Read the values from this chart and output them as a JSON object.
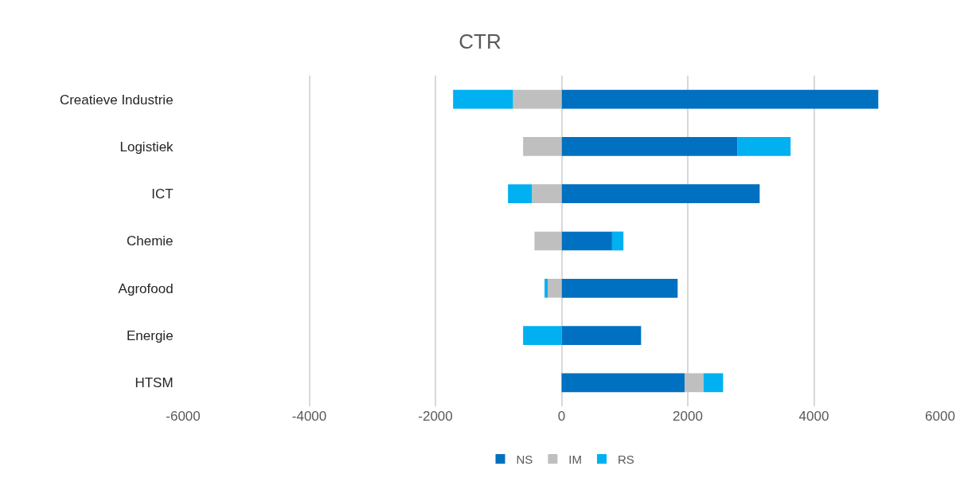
{
  "chart_data": {
    "type": "bar",
    "title": "CTR",
    "orientation": "horizontal",
    "stacked": true,
    "categories": [
      "Creatieve Industrie",
      "Logistiek",
      "ICT",
      "Chemie",
      "Agrofood",
      "Energie",
      "HTSM"
    ],
    "series": [
      {
        "name": "NS",
        "color": "#0070c0",
        "values": [
          5020,
          2790,
          3140,
          800,
          1840,
          1260,
          1950
        ]
      },
      {
        "name": "IM",
        "color": "#bfbfbf",
        "values": [
          -770,
          -610,
          -470,
          -430,
          -220,
          0,
          300
        ]
      },
      {
        "name": "RS",
        "color": "#00b0f0",
        "values": [
          -950,
          840,
          -380,
          180,
          -50,
          -610,
          310
        ]
      }
    ],
    "xlim": [
      -6000,
      6000
    ],
    "xticks": [
      -6000,
      -4000,
      -2000,
      0,
      2000,
      4000,
      6000
    ],
    "grid": "x",
    "legend": "bottom"
  }
}
